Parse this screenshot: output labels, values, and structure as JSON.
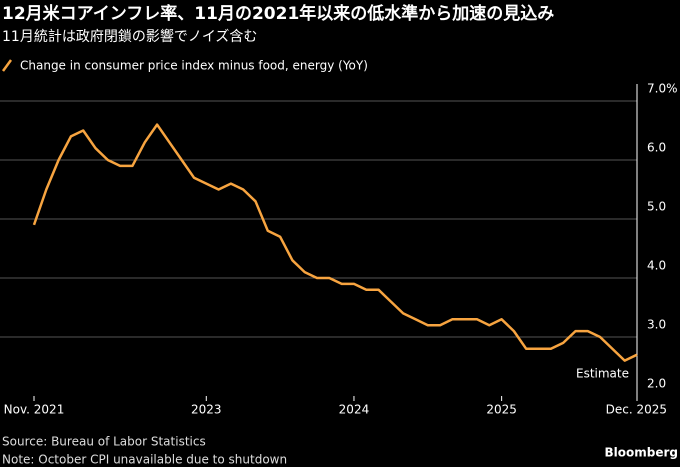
{
  "chart_data": {
    "type": "line",
    "title": "12月米コアインフレ率、11月の2021年以来の低水準から加速の見込み",
    "subtitle": "11月統計は政府閉鎖の影響でノイズ含む",
    "series": [
      {
        "name": "Change in consumer price index minus food, energy (YoY)",
        "color": "#f7a440",
        "x": [
          "2021-11",
          "2021-12",
          "2022-01",
          "2022-02",
          "2022-03",
          "2022-04",
          "2022-05",
          "2022-06",
          "2022-07",
          "2022-08",
          "2022-09",
          "2022-10",
          "2022-11",
          "2022-12",
          "2023-01",
          "2023-02",
          "2023-03",
          "2023-04",
          "2023-05",
          "2023-06",
          "2023-07",
          "2023-08",
          "2023-09",
          "2023-10",
          "2023-11",
          "2023-12",
          "2024-01",
          "2024-02",
          "2024-03",
          "2024-04",
          "2024-05",
          "2024-06",
          "2024-07",
          "2024-08",
          "2024-09",
          "2024-10",
          "2024-11",
          "2024-12",
          "2025-01",
          "2025-02",
          "2025-03",
          "2025-04",
          "2025-05",
          "2025-06",
          "2025-07",
          "2025-08",
          "2025-09",
          "2025-11",
          "2025-12"
        ],
        "values": [
          4.9,
          5.5,
          6.0,
          6.4,
          6.5,
          6.2,
          6.0,
          5.9,
          5.9,
          6.3,
          6.6,
          6.3,
          6.0,
          5.7,
          5.6,
          5.5,
          5.6,
          5.5,
          5.3,
          4.8,
          4.7,
          4.3,
          4.1,
          4.0,
          4.0,
          3.9,
          3.9,
          3.8,
          3.8,
          3.6,
          3.4,
          3.3,
          3.2,
          3.2,
          3.3,
          3.3,
          3.3,
          3.2,
          3.3,
          3.1,
          2.8,
          2.8,
          2.8,
          2.9,
          3.1,
          3.1,
          3.0,
          2.6,
          2.7
        ]
      }
    ],
    "xlim": [
      "2021-11",
      "2025-12"
    ],
    "xticks": [
      {
        "value": "2021-11",
        "label": "Nov. 2021"
      },
      {
        "value": "2023-01",
        "label": "2023"
      },
      {
        "value": "2024-01",
        "label": "2024"
      },
      {
        "value": "2025-01",
        "label": "2025"
      },
      {
        "value": "2025-12",
        "label": "Dec. 2025"
      }
    ],
    "ylim": [
      2,
      7
    ],
    "yticks": [
      {
        "value": 2,
        "label": "2.0"
      },
      {
        "value": 3,
        "label": "3.0"
      },
      {
        "value": 4,
        "label": "4.0"
      },
      {
        "value": 5,
        "label": "5.0"
      },
      {
        "value": 6,
        "label": "6.0"
      },
      {
        "value": 7,
        "label": "7.0%"
      }
    ],
    "grid": true,
    "annotation": "Estimate",
    "source": "Source: Bureau of Labor Statistics",
    "note": "Note: October CPI unavailable due to shutdown",
    "brand": "Bloomberg"
  }
}
